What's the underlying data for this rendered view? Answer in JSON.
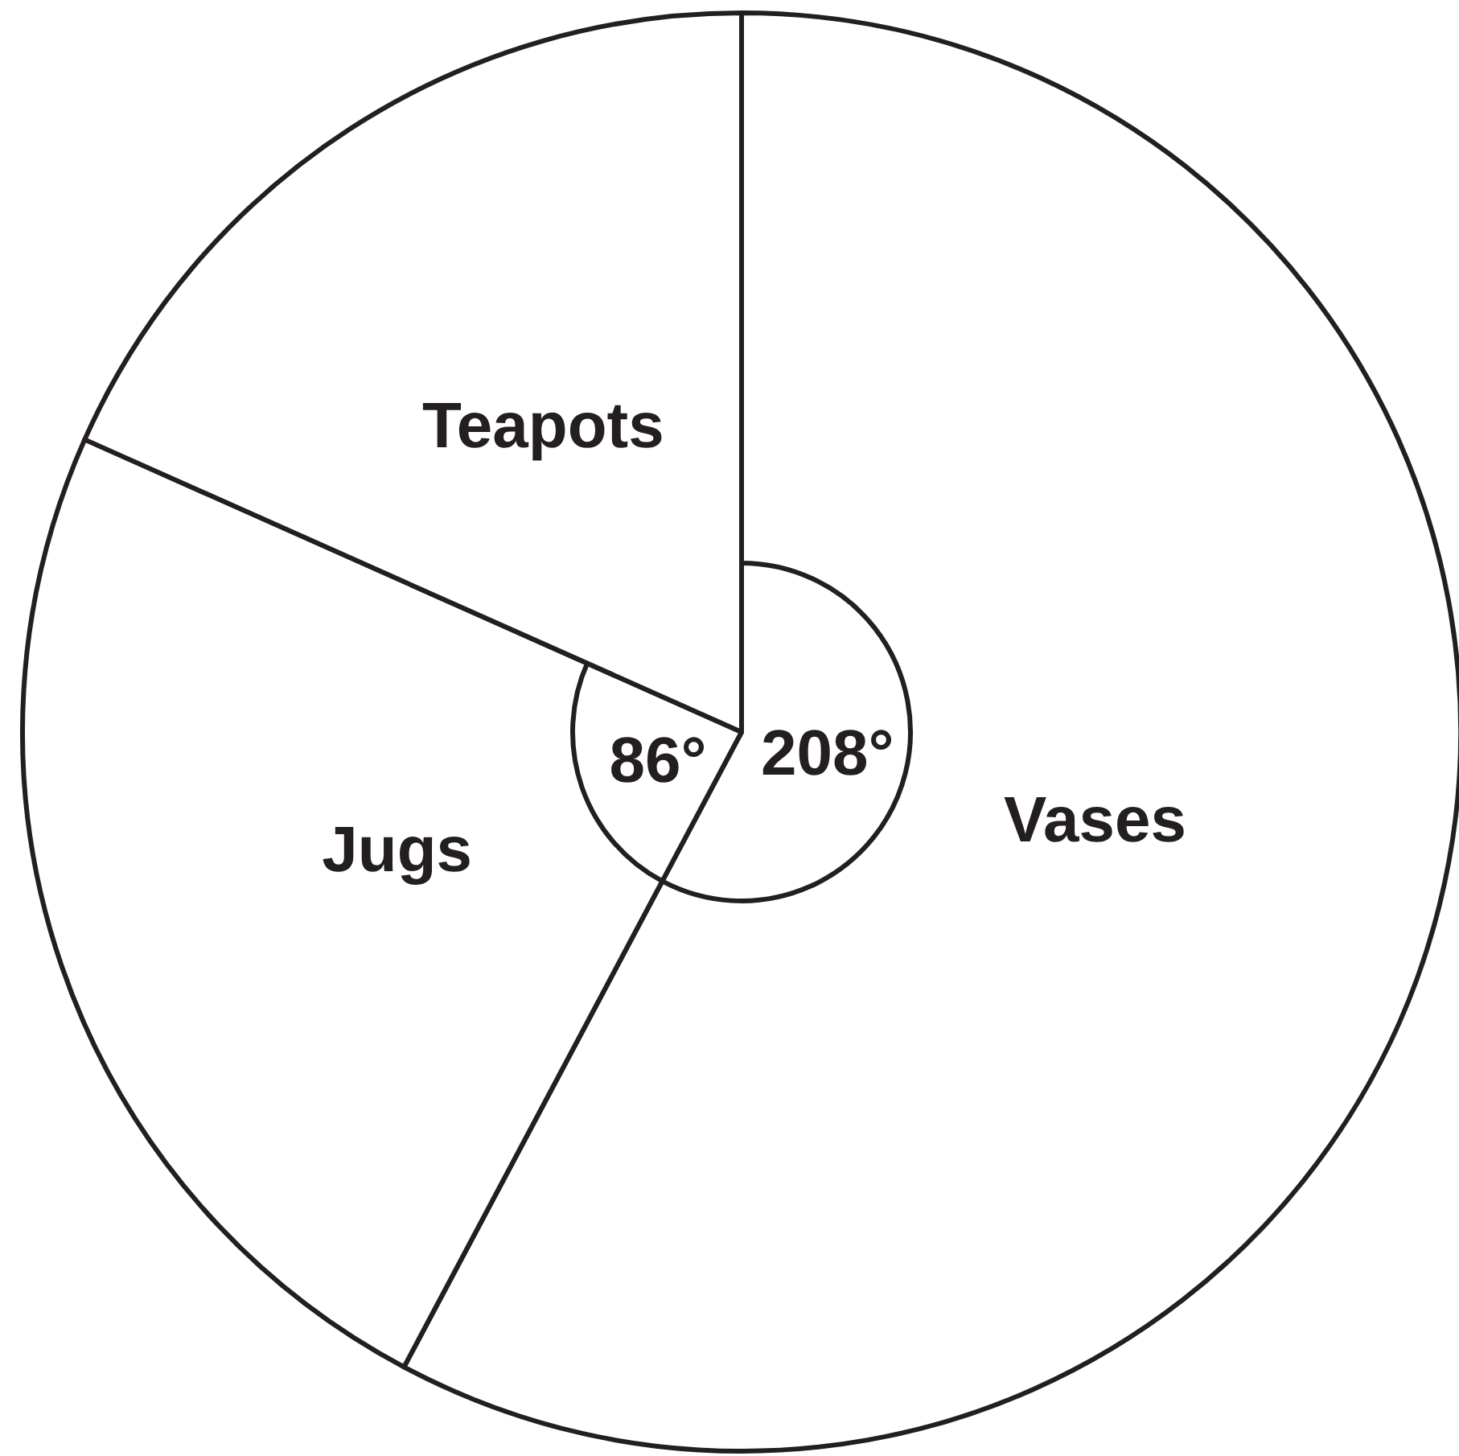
{
  "chart_data": {
    "type": "pie",
    "categories": [
      "Vases",
      "Jugs",
      "Teapots"
    ],
    "values": [
      208,
      86,
      66
    ],
    "colors": [
      "#ffffff",
      "#ffffff",
      "#ffffff"
    ],
    "value_labels": [
      "208°",
      "86°",
      null
    ],
    "legend": false
  }
}
